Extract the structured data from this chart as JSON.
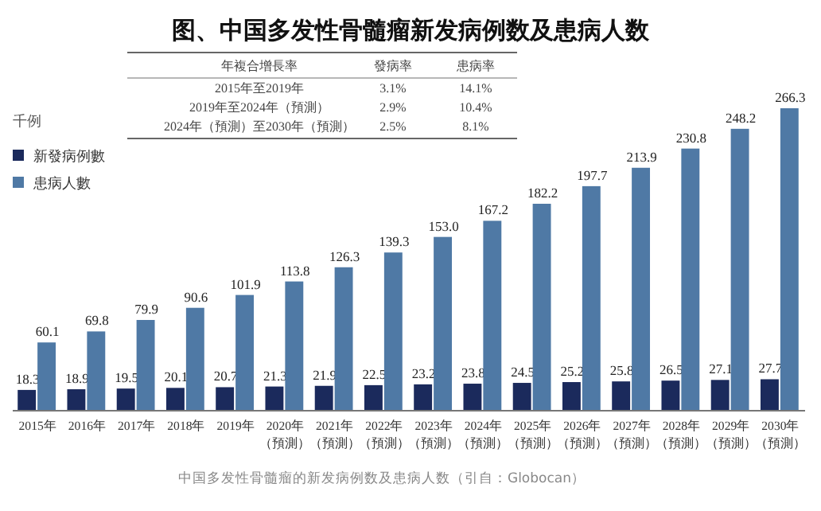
{
  "chart_data": {
    "type": "bar",
    "title": "图、中国多发性骨髓瘤新发病例数及患病人数",
    "ylabel": "千例",
    "categories": [
      "2015年",
      "2016年",
      "2017年",
      "2018年",
      "2019年",
      "2020年（預測）",
      "2021年（預測）",
      "2022年（預測）",
      "2023年（預測）",
      "2024年（預測）",
      "2025年（預測）",
      "2026年（預測）",
      "2027年（預測）",
      "2028年（預測）",
      "2029年（預測）",
      "2030年（預測）"
    ],
    "series": [
      {
        "name": "新發病例數",
        "color": "#1b2a5c",
        "values": [
          18.3,
          18.9,
          19.5,
          20.1,
          20.7,
          21.3,
          21.9,
          22.5,
          23.2,
          23.8,
          24.5,
          25.2,
          25.8,
          26.5,
          27.1,
          27.7
        ]
      },
      {
        "name": "患病人數",
        "color": "#4f79a5",
        "values": [
          60.1,
          69.8,
          79.9,
          90.6,
          101.9,
          113.8,
          126.3,
          139.3,
          153.0,
          167.2,
          182.2,
          197.7,
          213.9,
          230.8,
          248.2,
          266.3
        ],
        "value_labels": [
          "60.1",
          "69.8",
          "79.9",
          "90.6",
          "101.9",
          "113.8",
          "126.3",
          "139.3",
          "153.0",
          "167.2",
          "182.2",
          "197.7",
          "213.9",
          "230.8",
          "248.2",
          "266.3"
        ]
      }
    ],
    "data_labels": true,
    "legend": "top left",
    "annotations": [
      "年複合增長率",
      "發病率",
      "患病率",
      "2015年至2019年",
      "3.1%",
      "14.1%",
      "2019年至2024年（預測）",
      "2.9%",
      "10.4%",
      "2024年（預測）至2030年（預測）",
      "2.5%",
      "8.1%",
      "中国多发性骨髓瘤的新发病例数及患病人数（引自：Globocan）"
    ]
  }
}
